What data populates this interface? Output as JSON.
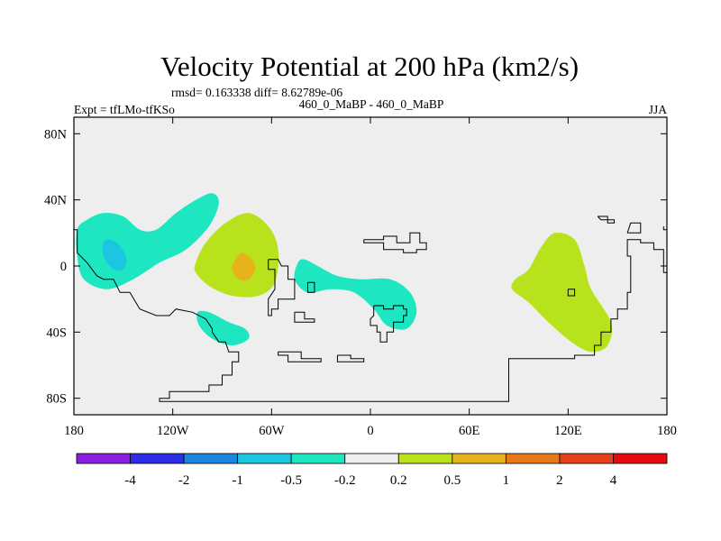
{
  "chart_data": {
    "type": "filled-contour-map",
    "title": "Velocity Potential at 200 hPa (km2/s)",
    "stats_line": "rmsd= 0.163338 diff= 8.62789e-06",
    "left_label": "Expt = tfLMo-tfKSo",
    "center_label": "460_0_MaBP - 460_0_MaBP",
    "right_label": "JJA",
    "x_range": [
      -180,
      180
    ],
    "y_range": [
      -90,
      90
    ],
    "x_ticks": [
      {
        "value": -180,
        "label": "180"
      },
      {
        "value": -120,
        "label": "120W"
      },
      {
        "value": -60,
        "label": "60W"
      },
      {
        "value": 0,
        "label": "0"
      },
      {
        "value": 60,
        "label": "60E"
      },
      {
        "value": 120,
        "label": "120E"
      },
      {
        "value": 180,
        "label": "180"
      }
    ],
    "y_ticks": [
      {
        "value": 80,
        "label": "80N"
      },
      {
        "value": 40,
        "label": "40N"
      },
      {
        "value": 0,
        "label": "0"
      },
      {
        "value": -40,
        "label": "40S"
      },
      {
        "value": -80,
        "label": "80S"
      }
    ],
    "colorbar": {
      "colors": [
        "#8a1ee0",
        "#2b2ee6",
        "#1a86e0",
        "#1cc6e0",
        "#1ee6c0",
        "#eeeeee",
        "#b8e31c",
        "#e6b41a",
        "#e67a1a",
        "#e6401a",
        "#e60a10"
      ],
      "labels": [
        {
          "boundary": 1,
          "text": "-4"
        },
        {
          "boundary": 2,
          "text": "-2"
        },
        {
          "boundary": 3,
          "text": "-1"
        },
        {
          "boundary": 4,
          "text": "-0.5"
        },
        {
          "boundary": 5,
          "text": "-0.2"
        },
        {
          "boundary": 6,
          "text": "0.2"
        },
        {
          "boundary": 7,
          "text": "0.5"
        },
        {
          "boundary": 8,
          "text": "1"
        },
        {
          "boundary": 9,
          "text": "2"
        },
        {
          "boundary": 10,
          "text": "4"
        }
      ]
    },
    "regions": [
      {
        "name": "neg-minus02-central-pacific",
        "color": "#1ee6c0",
        "points": [
          [
            -178,
            22
          ],
          [
            -172,
            28
          ],
          [
            -162,
            32
          ],
          [
            -150,
            30
          ],
          [
            -140,
            22
          ],
          [
            -130,
            22
          ],
          [
            -118,
            32
          ],
          [
            -106,
            40
          ],
          [
            -96,
            44
          ],
          [
            -92,
            38
          ],
          [
            -98,
            24
          ],
          [
            -112,
            10
          ],
          [
            -128,
            2
          ],
          [
            -144,
            -8
          ],
          [
            -160,
            -14
          ],
          [
            -174,
            -8
          ],
          [
            -178,
            6
          ]
        ]
      },
      {
        "name": "neg-minus05-central-pacific",
        "color": "#1cc6e0",
        "points": [
          [
            -158,
            16
          ],
          [
            -152,
            12
          ],
          [
            -148,
            4
          ],
          [
            -150,
            -2
          ],
          [
            -156,
            -2
          ],
          [
            -162,
            6
          ],
          [
            -162,
            14
          ]
        ]
      },
      {
        "name": "neg-minus02-southeast-pacific",
        "color": "#1ee6c0",
        "points": [
          [
            -105,
            -28
          ],
          [
            -98,
            -28
          ],
          [
            -86,
            -34
          ],
          [
            -76,
            -38
          ],
          [
            -74,
            -44
          ],
          [
            -84,
            -48
          ],
          [
            -96,
            -44
          ],
          [
            -104,
            -36
          ]
        ]
      },
      {
        "name": "neg-minus02-atlantic-africa",
        "color": "#1ee6c0",
        "points": [
          [
            -44,
            2
          ],
          [
            -40,
            4
          ],
          [
            -32,
            0
          ],
          [
            -20,
            -6
          ],
          [
            -6,
            -8
          ],
          [
            12,
            -8
          ],
          [
            24,
            -16
          ],
          [
            28,
            -28
          ],
          [
            22,
            -38
          ],
          [
            10,
            -36
          ],
          [
            2,
            -26
          ],
          [
            -10,
            -16
          ],
          [
            -24,
            -14
          ],
          [
            -38,
            -16
          ],
          [
            -46,
            -8
          ]
        ]
      },
      {
        "name": "pos-02-south-america",
        "color": "#b8e31c",
        "points": [
          [
            -106,
            2
          ],
          [
            -100,
            14
          ],
          [
            -88,
            26
          ],
          [
            -74,
            32
          ],
          [
            -62,
            24
          ],
          [
            -56,
            10
          ],
          [
            -58,
            -10
          ],
          [
            -68,
            -18
          ],
          [
            -84,
            -18
          ],
          [
            -98,
            -12
          ],
          [
            -106,
            -4
          ]
        ]
      },
      {
        "name": "pos-05-south-america",
        "color": "#e6b41a",
        "points": [
          [
            -82,
            4
          ],
          [
            -78,
            8
          ],
          [
            -72,
            4
          ],
          [
            -70,
            -2
          ],
          [
            -74,
            -8
          ],
          [
            -80,
            -8
          ],
          [
            -84,
            -2
          ]
        ]
      },
      {
        "name": "pos-02-indian-ocean",
        "color": "#b8e31c",
        "points": [
          [
            88,
            -8
          ],
          [
            96,
            -2
          ],
          [
            104,
            12
          ],
          [
            112,
            20
          ],
          [
            124,
            16
          ],
          [
            130,
            0
          ],
          [
            134,
            -14
          ],
          [
            146,
            -34
          ],
          [
            144,
            -48
          ],
          [
            134,
            -52
          ],
          [
            122,
            -46
          ],
          [
            108,
            -34
          ],
          [
            96,
            -22
          ],
          [
            86,
            -14
          ]
        ]
      }
    ],
    "coastlines": [
      [
        [
          -180,
          22
        ],
        [
          -178,
          22
        ],
        [
          -178,
          8
        ],
        [
          -172,
          2
        ],
        [
          -166,
          -6
        ],
        [
          -162,
          -8
        ],
        [
          -156,
          -8
        ],
        [
          -152,
          -16
        ],
        [
          -146,
          -16
        ],
        [
          -140,
          -26
        ],
        [
          -130,
          -30
        ],
        [
          -122,
          -30
        ],
        [
          -118,
          -26
        ],
        [
          -108,
          -28
        ],
        [
          -100,
          -32
        ],
        [
          -96,
          -38
        ],
        [
          -96,
          -40
        ],
        [
          -92,
          -46
        ],
        [
          -88,
          -46
        ],
        [
          -86,
          -52
        ],
        [
          -80,
          -52
        ],
        [
          -80,
          -58
        ],
        [
          -84,
          -58
        ],
        [
          -84,
          -66
        ],
        [
          -90,
          -66
        ],
        [
          -90,
          -72
        ],
        [
          -98,
          -72
        ],
        [
          -98,
          -76
        ],
        [
          -112,
          -76
        ],
        [
          -122,
          -76
        ],
        [
          -122,
          -80
        ],
        [
          -128,
          -80
        ],
        [
          -128,
          -82
        ],
        [
          -60,
          -82
        ],
        [
          0,
          -82
        ],
        [
          84,
          -82
        ],
        [
          84,
          -56
        ],
        [
          124,
          -56
        ],
        [
          124,
          -54
        ],
        [
          136,
          -54
        ],
        [
          136,
          -48
        ],
        [
          140,
          -48
        ],
        [
          140,
          -40
        ],
        [
          146,
          -40
        ],
        [
          146,
          -32
        ],
        [
          150,
          -32
        ],
        [
          150,
          -26
        ],
        [
          156,
          -26
        ],
        [
          156,
          -16
        ],
        [
          158,
          -16
        ],
        [
          158,
          6
        ],
        [
          156,
          6
        ],
        [
          156,
          16
        ],
        [
          164,
          16
        ],
        [
          164,
          14
        ],
        [
          172,
          14
        ],
        [
          172,
          10
        ],
        [
          178,
          10
        ],
        [
          178,
          -4
        ],
        [
          180,
          -4
        ]
      ],
      [
        [
          -62,
          4
        ],
        [
          -56,
          4
        ],
        [
          -54,
          0
        ],
        [
          -50,
          0
        ],
        [
          -50,
          -8
        ],
        [
          -46,
          -8
        ],
        [
          -46,
          -20
        ],
        [
          -56,
          -20
        ],
        [
          -56,
          -26
        ],
        [
          -60,
          -26
        ],
        [
          -60,
          -30
        ],
        [
          -62,
          -30
        ],
        [
          -62,
          -20
        ],
        [
          -58,
          -14
        ],
        [
          -58,
          -2
        ],
        [
          -62,
          -2
        ],
        [
          -62,
          4
        ]
      ],
      [
        [
          -46,
          -28
        ],
        [
          -40,
          -28
        ],
        [
          -40,
          -32
        ],
        [
          -34,
          -32
        ],
        [
          -34,
          -34
        ],
        [
          -46,
          -34
        ],
        [
          -46,
          -28
        ]
      ],
      [
        [
          -38,
          -10
        ],
        [
          -34,
          -10
        ],
        [
          -34,
          -16
        ],
        [
          -38,
          -16
        ],
        [
          -38,
          -10
        ]
      ],
      [
        [
          -56,
          -52
        ],
        [
          -42,
          -52
        ],
        [
          -42,
          -56
        ],
        [
          -30,
          -56
        ],
        [
          -30,
          -58
        ],
        [
          -50,
          -58
        ],
        [
          -50,
          -54
        ],
        [
          -56,
          -54
        ],
        [
          -56,
          -52
        ]
      ],
      [
        [
          -20,
          -54
        ],
        [
          -12,
          -54
        ],
        [
          -12,
          -56
        ],
        [
          -4,
          -56
        ],
        [
          -4,
          -58
        ],
        [
          -20,
          -58
        ],
        [
          -20,
          -54
        ]
      ],
      [
        [
          -4,
          16
        ],
        [
          8,
          16
        ],
        [
          8,
          18
        ],
        [
          16,
          18
        ],
        [
          16,
          14
        ],
        [
          24,
          14
        ],
        [
          24,
          20
        ],
        [
          30,
          20
        ],
        [
          30,
          14
        ],
        [
          34,
          14
        ],
        [
          34,
          10
        ],
        [
          28,
          10
        ],
        [
          28,
          8
        ],
        [
          20,
          8
        ],
        [
          20,
          10
        ],
        [
          8,
          10
        ],
        [
          8,
          14
        ],
        [
          -4,
          14
        ],
        [
          -4,
          16
        ]
      ],
      [
        [
          2,
          -24
        ],
        [
          2,
          -30
        ],
        [
          0,
          -32
        ],
        [
          0,
          -36
        ],
        [
          4,
          -36
        ],
        [
          4,
          -40
        ],
        [
          6,
          -40
        ],
        [
          6,
          -46
        ],
        [
          10,
          -46
        ],
        [
          10,
          -40
        ],
        [
          14,
          -40
        ],
        [
          14,
          -34
        ],
        [
          20,
          -34
        ],
        [
          20,
          -30
        ],
        [
          22,
          -30
        ],
        [
          22,
          -26
        ],
        [
          20,
          -26
        ],
        [
          20,
          -24
        ],
        [
          14,
          -24
        ],
        [
          14,
          -26
        ],
        [
          8,
          -26
        ],
        [
          8,
          -24
        ],
        [
          2,
          -24
        ]
      ],
      [
        [
          -180,
          20
        ],
        [
          -180,
          22
        ]
      ],
      [
        [
          180,
          22
        ],
        [
          178,
          22
        ],
        [
          178,
          24
        ]
      ],
      [
        [
          138,
          30
        ],
        [
          144,
          30
        ],
        [
          144,
          26
        ],
        [
          148,
          26
        ],
        [
          148,
          28
        ],
        [
          140,
          28
        ],
        [
          138,
          30
        ]
      ],
      [
        [
          156,
          20
        ],
        [
          164,
          20
        ],
        [
          164,
          26
        ],
        [
          158,
          26
        ],
        [
          156,
          20
        ]
      ],
      [
        [
          120,
          -14
        ],
        [
          120,
          -18
        ],
        [
          124,
          -18
        ],
        [
          124,
          -14
        ],
        [
          120,
          -14
        ]
      ]
    ]
  }
}
